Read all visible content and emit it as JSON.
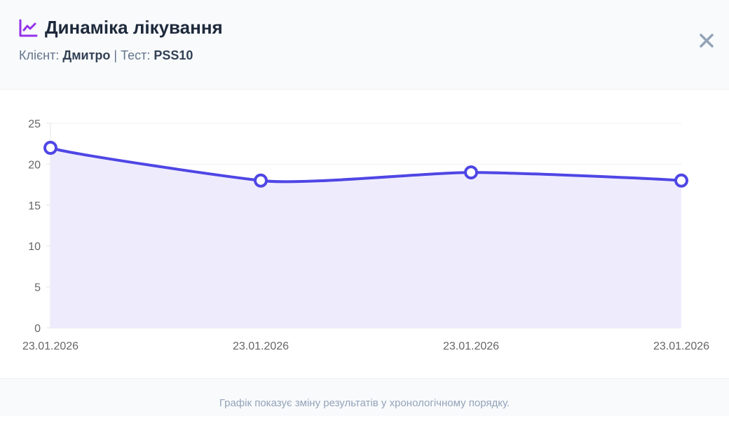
{
  "header": {
    "title": "Динаміка лікування",
    "icon": "chart-line-icon",
    "client_label": "Клієнт:",
    "client_name": "Дмитро",
    "separator": "|",
    "test_label": "Тест:",
    "test_name": "PSS10",
    "close_icon": "close-icon"
  },
  "colors": {
    "accent": "#4f46e5",
    "icon": "#9333ea",
    "fill": "#eeecfc"
  },
  "chart_data": {
    "type": "line",
    "title": "",
    "xlabel": "",
    "ylabel": "",
    "categories": [
      "23.01.2026",
      "23.01.2026",
      "23.01.2026",
      "23.01.2026"
    ],
    "series": [
      {
        "name": "PSS10",
        "values": [
          22,
          18,
          19,
          18
        ]
      }
    ],
    "ylim": [
      0,
      25
    ],
    "yticks": [
      0,
      5,
      10,
      15,
      20,
      25
    ],
    "grid": true,
    "legend": "none",
    "fill": true
  },
  "footer": {
    "note": "Графік показує зміну результатів у хронологічному порядку."
  }
}
